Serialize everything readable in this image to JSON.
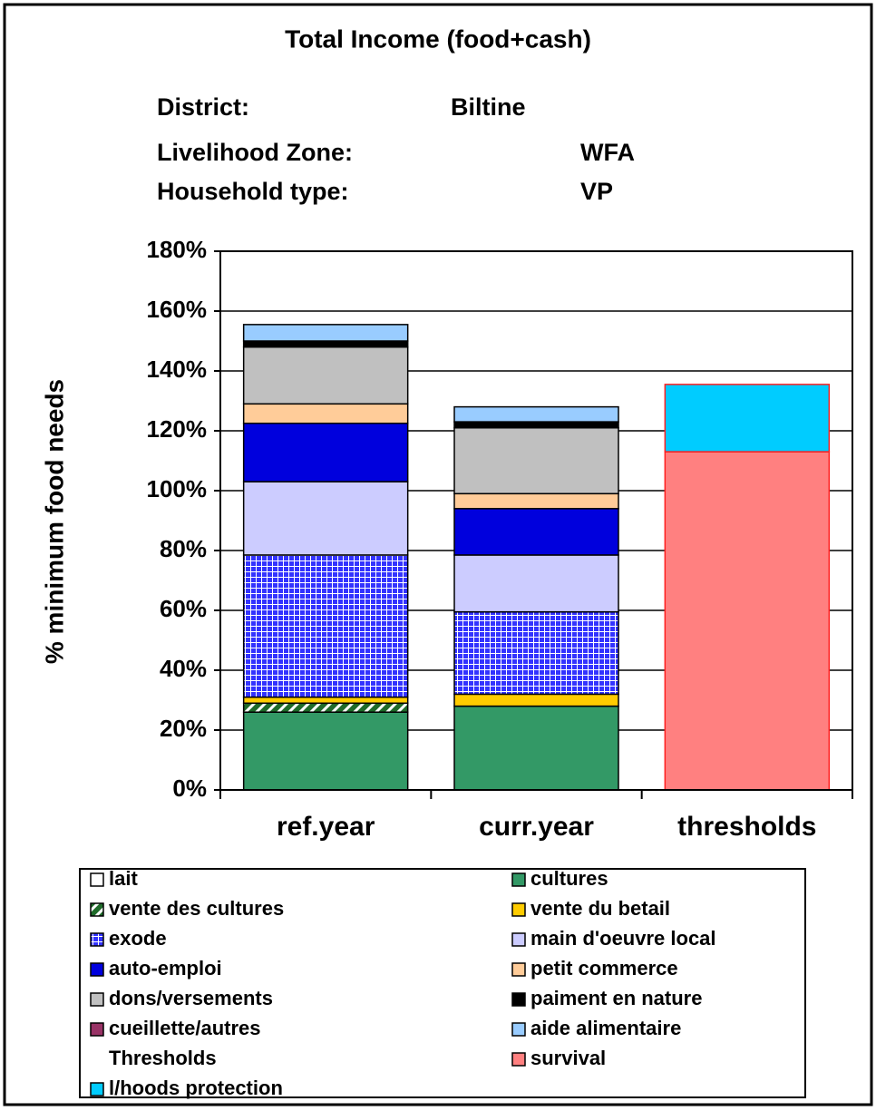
{
  "chart_data": {
    "type": "stacked_bar",
    "title": "Total Income (food+cash)",
    "info": [
      {
        "label": "District:",
        "value": "Biltine"
      },
      {
        "label": "Livelihood Zone:",
        "value": "WFA"
      },
      {
        "label": "Household type:",
        "value": "VP"
      }
    ],
    "y_label": "% minimum food needs",
    "categories": [
      "ref.year",
      "curr.year",
      "thresholds"
    ],
    "ylim": [
      0,
      180
    ],
    "yticks": [
      {
        "value": 0,
        "label": "0%"
      },
      {
        "value": 20,
        "label": "20%"
      },
      {
        "value": 40,
        "label": "40%"
      },
      {
        "value": 60,
        "label": "60%"
      },
      {
        "value": 80,
        "label": "80%"
      },
      {
        "value": 100,
        "label": "100%"
      },
      {
        "value": 120,
        "label": "120%"
      },
      {
        "value": 140,
        "label": "140%"
      },
      {
        "value": 160,
        "label": "160%"
      },
      {
        "value": 180,
        "label": "180%"
      }
    ],
    "grid": true,
    "series": [
      {
        "name": "lait",
        "color": "#ffffff",
        "values": [
          0,
          0,
          null
        ]
      },
      {
        "name": "cultures",
        "color": "#339966",
        "values": [
          26,
          28,
          null
        ]
      },
      {
        "name": "vente des cultures",
        "color": "#1f6b2a",
        "pattern": "diagonal",
        "values": [
          3,
          0,
          null
        ]
      },
      {
        "name": "vente du betail",
        "color": "#ffcc00",
        "values": [
          2,
          4,
          null
        ]
      },
      {
        "name": "exode",
        "color": "#3333ff",
        "pattern": "grid",
        "values": [
          47.5,
          27.5,
          null
        ]
      },
      {
        "name": "main d'oeuvre local",
        "color": "#ccccff",
        "values": [
          24.5,
          19,
          null
        ]
      },
      {
        "name": "auto-emploi",
        "color": "#0000dd",
        "values": [
          19.5,
          15.5,
          null
        ]
      },
      {
        "name": "petit commerce",
        "color": "#ffcc99",
        "values": [
          6.5,
          5,
          null
        ]
      },
      {
        "name": "dons/versements",
        "color": "#c0c0c0",
        "values": [
          19,
          22,
          null
        ]
      },
      {
        "name": "paiment en nature",
        "color": "#000000",
        "values": [
          2,
          2,
          null
        ]
      },
      {
        "name": "cueillette/autres",
        "color": "#993366",
        "values": [
          0,
          0,
          null
        ]
      },
      {
        "name": "aide alimentaire",
        "color": "#99ccff",
        "values": [
          5.5,
          5,
          null
        ]
      },
      {
        "name": "Thresholds",
        "values": [
          null,
          null,
          null
        ]
      },
      {
        "name": "survival",
        "color": "#ff8080",
        "values": [
          null,
          null,
          113
        ]
      },
      {
        "name": "l/hoods protection",
        "color": "#00ccff",
        "values": [
          null,
          null,
          22.5
        ]
      }
    ]
  }
}
